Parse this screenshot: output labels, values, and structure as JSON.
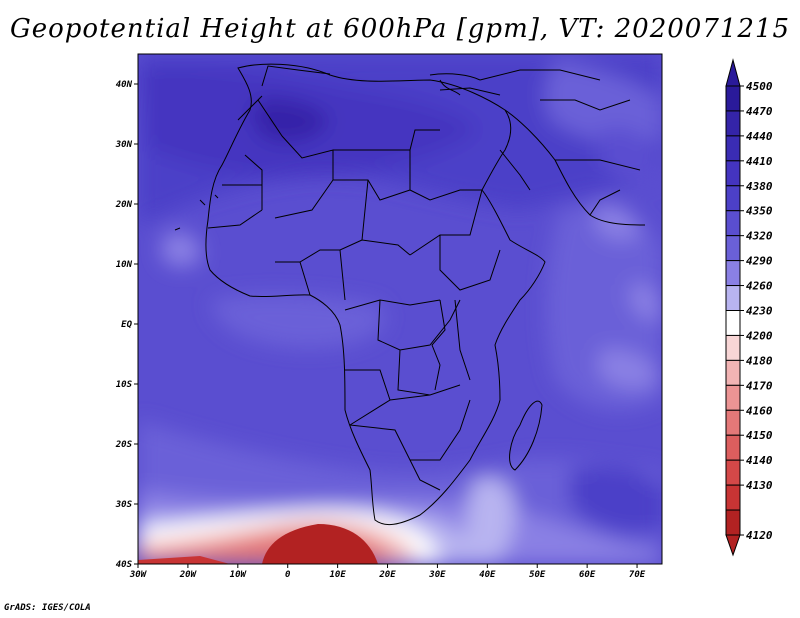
{
  "title": "Geopotential Height at 600hPa [gpm], VT: 2020071215",
  "credit": "GrADS: IGES/COLA",
  "map": {
    "lon_range": [
      -30,
      75
    ],
    "lat_range": [
      -40,
      45
    ],
    "lat_ticks": [
      "40N",
      "30N",
      "20N",
      "10N",
      "EQ",
      "10S",
      "20S",
      "30S",
      "40S"
    ],
    "lon_ticks": [
      "30W",
      "20W",
      "10W",
      "0",
      "10E",
      "20E",
      "30E",
      "40E",
      "50E",
      "60E",
      "70E"
    ]
  },
  "colorbar": {
    "levels": [
      "4500",
      "4470",
      "4440",
      "4410",
      "4380",
      "4350",
      "4320",
      "4290",
      "4260",
      "4230",
      "4200",
      "4180",
      "4170",
      "4160",
      "4150",
      "4140",
      "4130",
      "4120"
    ],
    "colors": [
      "#2a1a9a",
      "#3424a8",
      "#3a2cb4",
      "#4434c0",
      "#4c40c8",
      "#5a4ed0",
      "#6a60d8",
      "#8a80e4",
      "#b8b4f0",
      "#ffffff",
      "#f8d6d6",
      "#f2b4b4",
      "#ec9494",
      "#e47878",
      "#dc5e5e",
      "#d44848",
      "#c83434",
      "#b22222"
    ]
  }
}
